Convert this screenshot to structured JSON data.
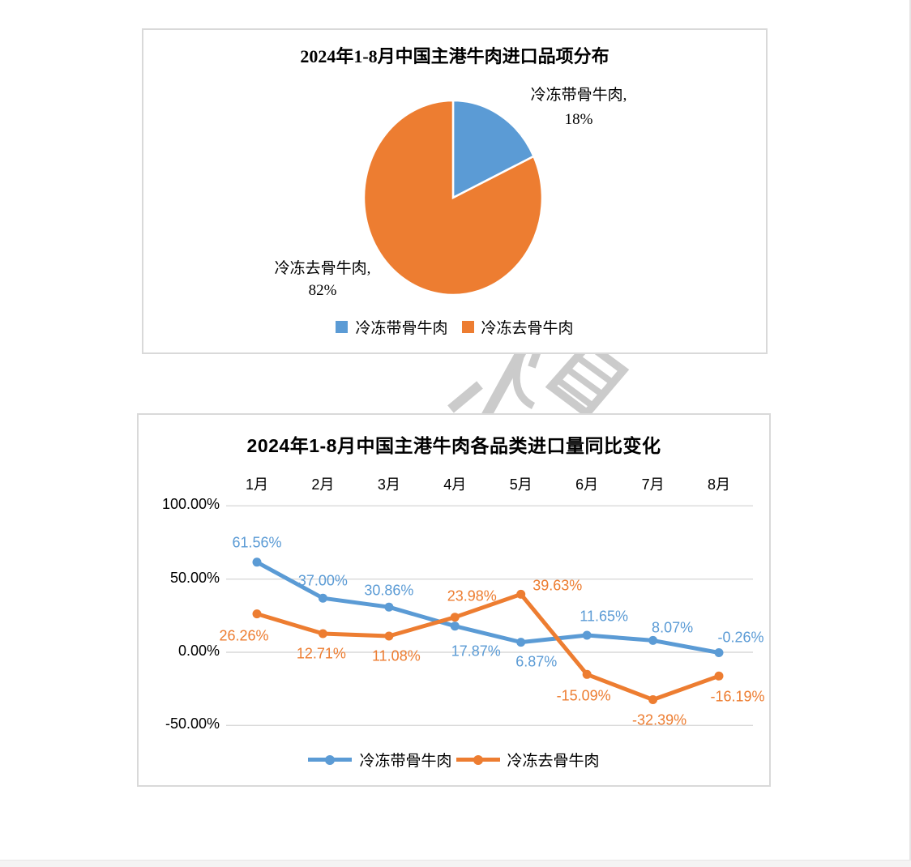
{
  "chart_data": [
    {
      "type": "pie",
      "title": "2024年1-8月中国主港牛肉进口品项分布",
      "labels": [
        "冷冻带骨牛肉",
        "冷冻去骨牛肉"
      ],
      "values": [
        18,
        82
      ],
      "colors": [
        "#5B9BD5",
        "#ED7D31"
      ],
      "slice_labels": [
        {
          "line1": "冷冻带骨牛肉,",
          "line2": "18%"
        },
        {
          "line1": "冷冻去骨牛肉,",
          "line2": "82%"
        }
      ],
      "legend_position": "bottom"
    },
    {
      "type": "line",
      "title": "2024年1-8月中国主港牛肉各品类进口量同比变化",
      "categories": [
        "1月",
        "2月",
        "3月",
        "4月",
        "5月",
        "6月",
        "7月",
        "8月"
      ],
      "x_axis_position": "top",
      "ylim": [
        -50,
        100
      ],
      "grid": true,
      "legend_position": "bottom",
      "yticks": [
        {
          "value": 100,
          "label": "100.00%"
        },
        {
          "value": 50,
          "label": "50.00%"
        },
        {
          "value": 0,
          "label": "0.00%"
        },
        {
          "value": -50,
          "label": "-50.00%"
        }
      ],
      "series": [
        {
          "name": "冷冻带骨牛肉",
          "color": "#5B9BD5",
          "values": [
            61.56,
            37.0,
            30.86,
            17.87,
            6.87,
            11.65,
            8.07,
            -0.26
          ],
          "labels": [
            "61.56%",
            "37.00%",
            "30.86%",
            "17.87%",
            "6.87%",
            "11.65%",
            "8.07%",
            "-0.26%"
          ],
          "label_offsets": [
            [
              0,
              -24
            ],
            [
              0,
              -21
            ],
            [
              0,
              -20
            ],
            [
              26,
              31
            ],
            [
              19,
              24
            ],
            [
              21,
              -23
            ],
            [
              24,
              -15
            ],
            [
              27,
              -18
            ]
          ]
        },
        {
          "name": "冷冻去骨牛肉",
          "color": "#ED7D31",
          "values": [
            26.26,
            12.71,
            11.08,
            23.98,
            39.63,
            -15.09,
            -32.39,
            -16.19
          ],
          "labels": [
            "26.26%",
            "12.71%",
            "11.08%",
            "23.98%",
            "39.63%",
            "-15.09%",
            "-32.39%",
            "-16.19%"
          ],
          "label_offsets": [
            [
              -16,
              27
            ],
            [
              -2,
              25
            ],
            [
              9,
              25
            ],
            [
              21,
              -26
            ],
            [
              45,
              -10
            ],
            [
              -4,
              27
            ],
            [
              8,
              25
            ],
            [
              23,
              26
            ]
          ]
        }
      ]
    }
  ]
}
